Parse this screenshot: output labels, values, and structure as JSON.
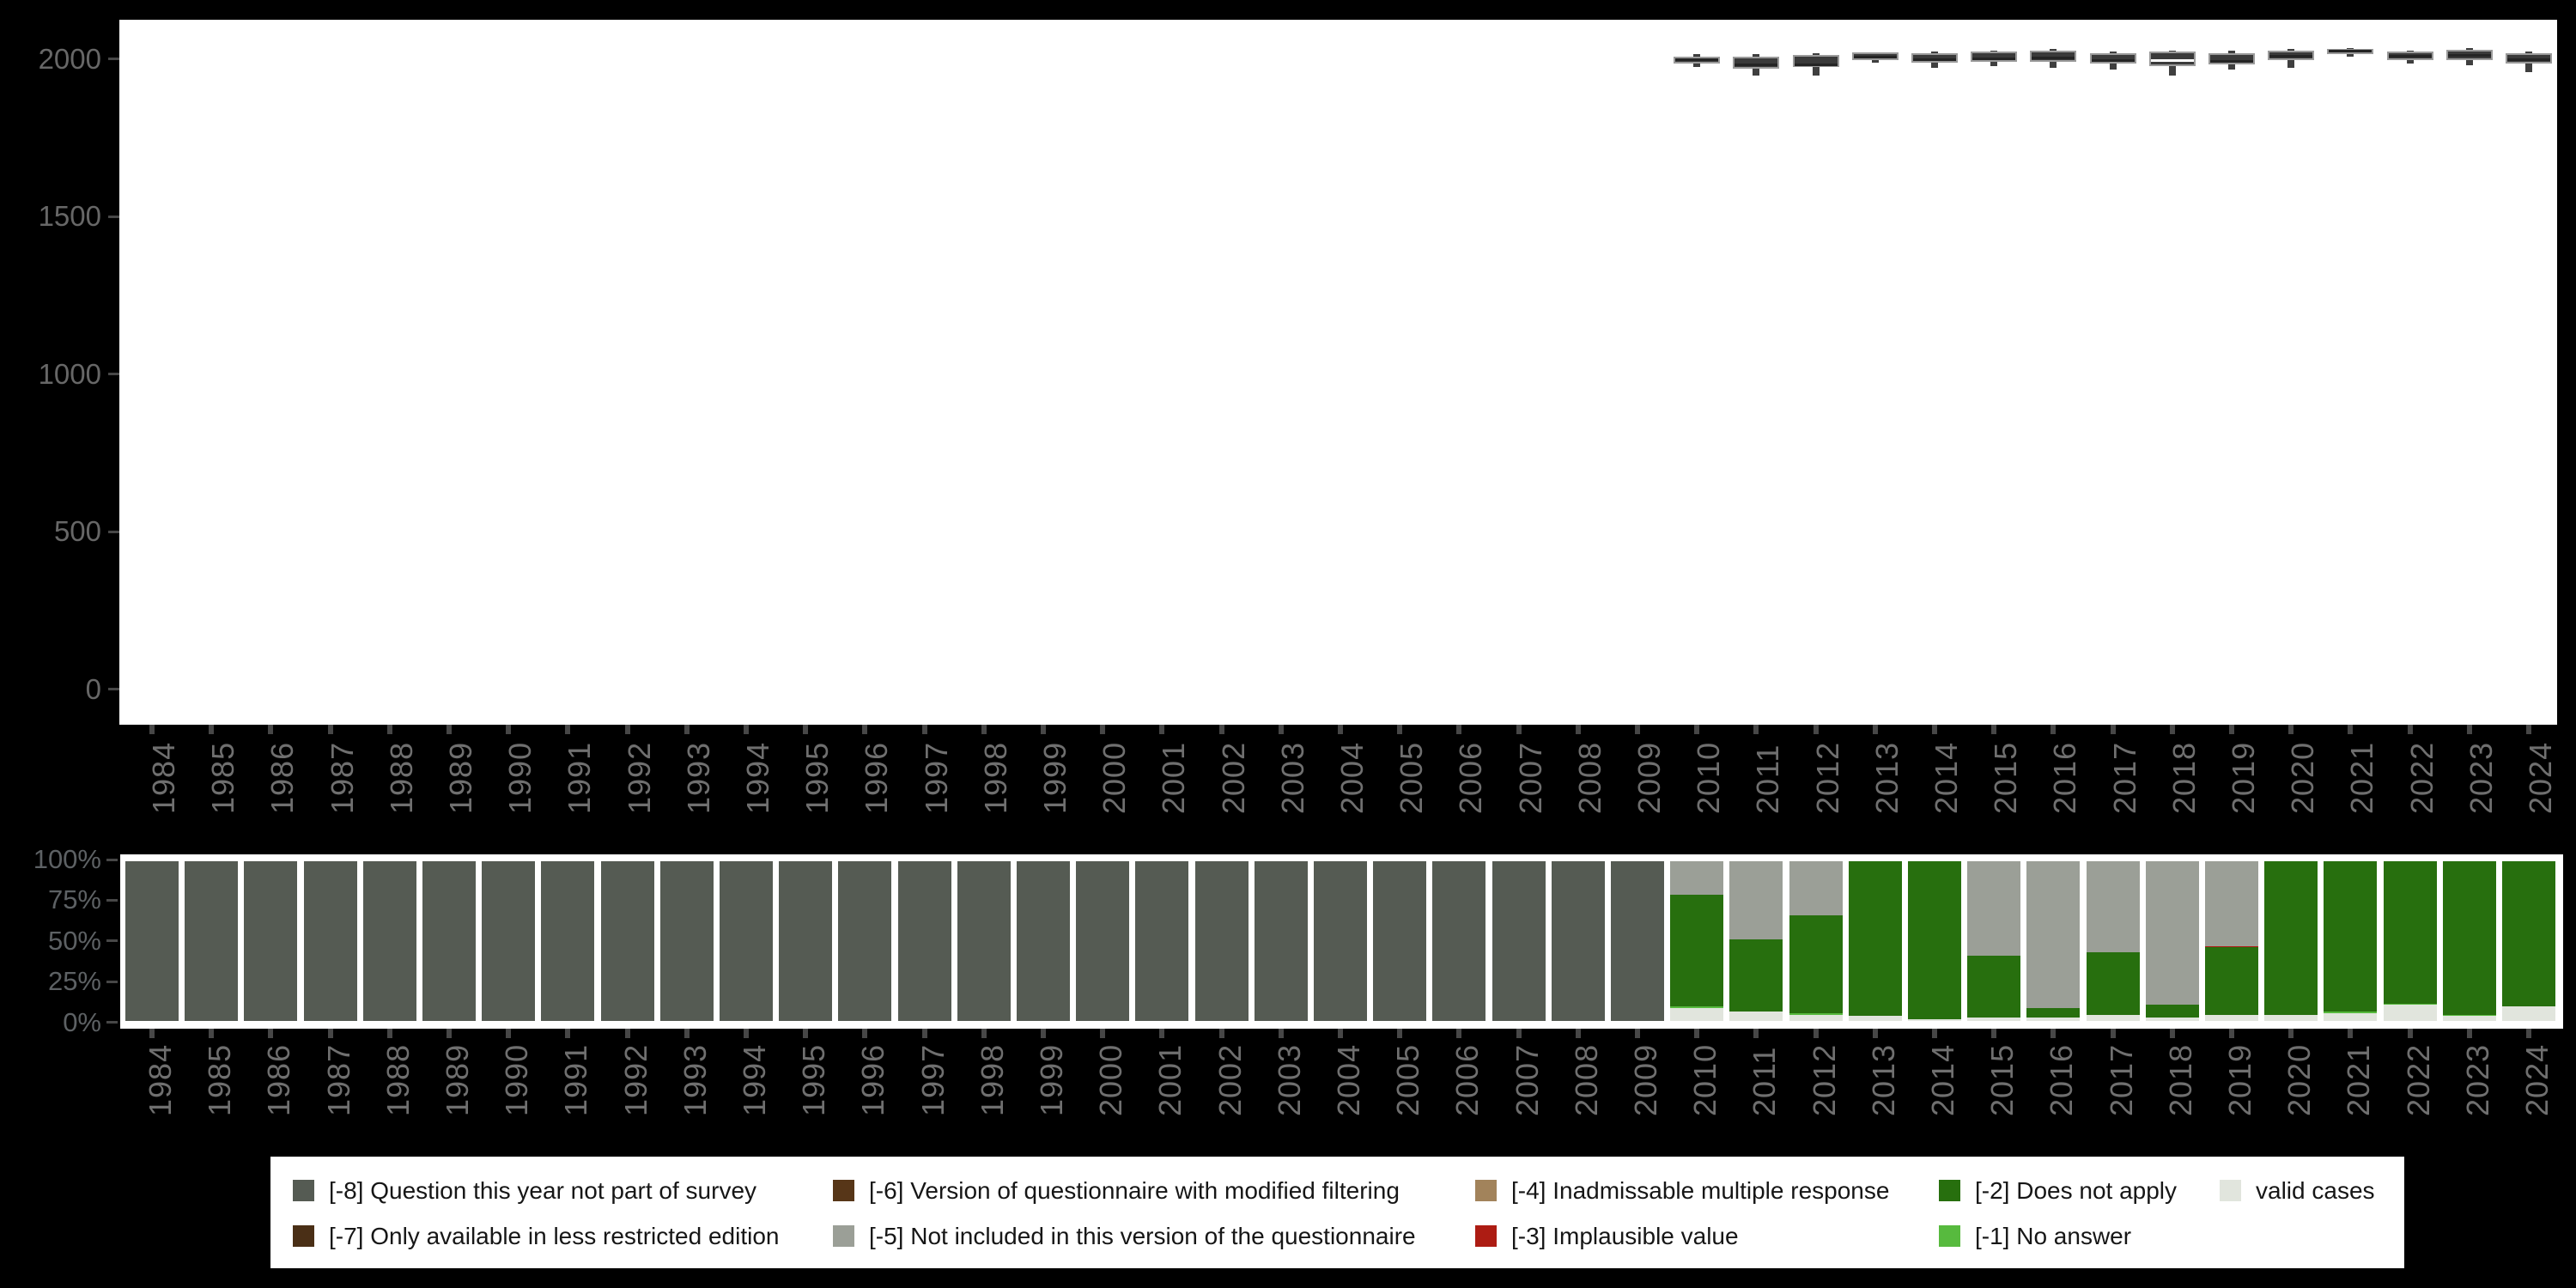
{
  "colors": {
    "background": "#000000",
    "panel": "#ffffff",
    "box_fill": "#3a3a3a",
    "box_border": "#9b9b9b",
    "median_default": "#242424",
    "median_highlight": "#ffffff",
    "axis_tick": "#474747",
    "axis_text": "#6f6f6f",
    "legend_text": "#161616",
    "categories": {
      "-8": "#555b53",
      "-7": "#4a2f16",
      "-6": "#573618",
      "-5": "#9b9f97",
      "-4": "#a2835b",
      "-3": "#ad1c13",
      "-2": "#276f0e",
      "-1": "#57ba3e",
      "valid": "#e1e5dd"
    }
  },
  "legend": {
    "items": [
      {
        "code": "-8",
        "label": "[-8] Question this year not part of survey",
        "col": 0,
        "row": 0
      },
      {
        "code": "-7",
        "label": "[-7] Only available in less restricted edition",
        "col": 0,
        "row": 1
      },
      {
        "code": "-6",
        "label": "[-6] Version of questionnaire with modified filtering",
        "col": 1,
        "row": 0
      },
      {
        "code": "-5",
        "label": "[-5] Not included in this version of the questionnaire",
        "col": 1,
        "row": 1
      },
      {
        "code": "-4",
        "label": "[-4] Inadmissable multiple response",
        "col": 2,
        "row": 0
      },
      {
        "code": "-3",
        "label": "[-3] Implausible value",
        "col": 2,
        "row": 1
      },
      {
        "code": "-2",
        "label": "[-2] Does not apply",
        "col": 3,
        "row": 0
      },
      {
        "code": "-1",
        "label": "[-1] No answer",
        "col": 3,
        "row": 1
      },
      {
        "code": "valid",
        "label": "valid cases",
        "col": 4,
        "row": 0
      }
    ]
  },
  "chart_data": [
    {
      "type": "boxplot",
      "title": "",
      "xlabel": "",
      "ylabel": "",
      "ylim": [
        0,
        2000
      ],
      "grid": false,
      "y_ticks": [
        2000,
        1500,
        1000,
        500,
        0
      ],
      "years": [
        1984,
        1985,
        1986,
        1987,
        1988,
        1989,
        1990,
        1991,
        1992,
        1993,
        1994,
        1995,
        1996,
        1997,
        1998,
        1999,
        2000,
        2001,
        2002,
        2003,
        2004,
        2005,
        2006,
        2007,
        2008,
        2009,
        2010,
        2011,
        2012,
        2013,
        2014,
        2015,
        2016,
        2017,
        2018,
        2019,
        2020,
        2021,
        2022,
        2023,
        2024
      ],
      "boxes": [
        {
          "year": 2010,
          "lo": 1975,
          "q1": 1984,
          "med": 1996,
          "q3": 2008,
          "hi": 2016,
          "median_white": false
        },
        {
          "year": 2011,
          "lo": 1948,
          "q1": 1970,
          "med": 1981,
          "q3": 2007,
          "hi": 2014,
          "median_white": false
        },
        {
          "year": 2012,
          "lo": 1948,
          "q1": 1973,
          "med": 1981,
          "q3": 2011,
          "hi": 2017,
          "median_white": false
        },
        {
          "year": 2013,
          "lo": 1988,
          "q1": 1997,
          "med": 2006,
          "q3": 2020,
          "hi": 2022,
          "median_white": false
        },
        {
          "year": 2014,
          "lo": 1970,
          "q1": 1988,
          "med": 1997,
          "q3": 2017,
          "hi": 2022,
          "median_white": false
        },
        {
          "year": 2015,
          "lo": 1977,
          "q1": 1990,
          "med": 2000,
          "q3": 2023,
          "hi": 2027,
          "median_white": false
        },
        {
          "year": 2016,
          "lo": 1970,
          "q1": 1990,
          "med": 2003,
          "q3": 2026,
          "hi": 2030,
          "median_white": false
        },
        {
          "year": 2017,
          "lo": 1966,
          "q1": 1984,
          "med": 1995,
          "q3": 2017,
          "hi": 2022,
          "median_white": false
        },
        {
          "year": 2018,
          "lo": 1948,
          "q1": 1977,
          "med": 1995,
          "q3": 2023,
          "hi": 2027,
          "median_white": true
        },
        {
          "year": 2019,
          "lo": 1966,
          "q1": 1981,
          "med": 1992,
          "q3": 2017,
          "hi": 2026,
          "median_white": false
        },
        {
          "year": 2020,
          "lo": 1972,
          "q1": 1995,
          "med": 2008,
          "q3": 2026,
          "hi": 2030,
          "median_white": false
        },
        {
          "year": 2021,
          "lo": 2006,
          "q1": 2015,
          "med": 2024,
          "q3": 2032,
          "hi": 2035,
          "median_white": false
        },
        {
          "year": 2022,
          "lo": 1984,
          "q1": 1997,
          "med": 2008,
          "q3": 2023,
          "hi": 2027,
          "median_white": false
        },
        {
          "year": 2023,
          "lo": 1979,
          "q1": 1997,
          "med": 2011,
          "q3": 2029,
          "hi": 2033,
          "median_white": false
        },
        {
          "year": 2024,
          "lo": 1957,
          "q1": 1986,
          "med": 1997,
          "q3": 2017,
          "hi": 2022,
          "median_white": false
        }
      ]
    },
    {
      "type": "bar",
      "stacked": true,
      "percent": true,
      "title": "",
      "xlabel": "",
      "ylabel": "",
      "grid": false,
      "y_ticks": [
        "100%",
        "75%",
        "50%",
        "25%",
        "0%"
      ],
      "years": [
        1984,
        1985,
        1986,
        1987,
        1988,
        1989,
        1990,
        1991,
        1992,
        1993,
        1994,
        1995,
        1996,
        1997,
        1998,
        1999,
        2000,
        2001,
        2002,
        2003,
        2004,
        2005,
        2006,
        2007,
        2008,
        2009,
        2010,
        2011,
        2012,
        2013,
        2014,
        2015,
        2016,
        2017,
        2018,
        2019,
        2020,
        2021,
        2022,
        2023,
        2024
      ],
      "bars": [
        {
          "year": 1984,
          "segments": [
            [
              "-8",
              100
            ]
          ]
        },
        {
          "year": 1985,
          "segments": [
            [
              "-8",
              100
            ]
          ]
        },
        {
          "year": 1986,
          "segments": [
            [
              "-8",
              100
            ]
          ]
        },
        {
          "year": 1987,
          "segments": [
            [
              "-8",
              100
            ]
          ]
        },
        {
          "year": 1988,
          "segments": [
            [
              "-8",
              100
            ]
          ]
        },
        {
          "year": 1989,
          "segments": [
            [
              "-8",
              100
            ]
          ]
        },
        {
          "year": 1990,
          "segments": [
            [
              "-8",
              100
            ]
          ]
        },
        {
          "year": 1991,
          "segments": [
            [
              "-8",
              100
            ]
          ]
        },
        {
          "year": 1992,
          "segments": [
            [
              "-8",
              100
            ]
          ]
        },
        {
          "year": 1993,
          "segments": [
            [
              "-8",
              100
            ]
          ]
        },
        {
          "year": 1994,
          "segments": [
            [
              "-8",
              100
            ]
          ]
        },
        {
          "year": 1995,
          "segments": [
            [
              "-8",
              100
            ]
          ]
        },
        {
          "year": 1996,
          "segments": [
            [
              "-8",
              100
            ]
          ]
        },
        {
          "year": 1997,
          "segments": [
            [
              "-8",
              100
            ]
          ]
        },
        {
          "year": 1998,
          "segments": [
            [
              "-8",
              100
            ]
          ]
        },
        {
          "year": 1999,
          "segments": [
            [
              "-8",
              100
            ]
          ]
        },
        {
          "year": 2000,
          "segments": [
            [
              "-8",
              100
            ]
          ]
        },
        {
          "year": 2001,
          "segments": [
            [
              "-8",
              100
            ]
          ]
        },
        {
          "year": 2002,
          "segments": [
            [
              "-8",
              100
            ]
          ]
        },
        {
          "year": 2003,
          "segments": [
            [
              "-8",
              100
            ]
          ]
        },
        {
          "year": 2004,
          "segments": [
            [
              "-8",
              100
            ]
          ]
        },
        {
          "year": 2005,
          "segments": [
            [
              "-8",
              100
            ]
          ]
        },
        {
          "year": 2006,
          "segments": [
            [
              "-8",
              100
            ]
          ]
        },
        {
          "year": 2007,
          "segments": [
            [
              "-8",
              100
            ]
          ]
        },
        {
          "year": 2008,
          "segments": [
            [
              "-8",
              100
            ]
          ]
        },
        {
          "year": 2009,
          "segments": [
            [
              "-8",
              100
            ]
          ]
        },
        {
          "year": 2010,
          "segments": [
            [
              "-5",
              21
            ],
            [
              "-2",
              70
            ],
            [
              "-1",
              1
            ],
            [
              "valid",
              8
            ]
          ]
        },
        {
          "year": 2011,
          "segments": [
            [
              "-5",
              49
            ],
            [
              "-2",
              45
            ],
            [
              "valid",
              6
            ]
          ]
        },
        {
          "year": 2012,
          "segments": [
            [
              "-5",
              34
            ],
            [
              "-2",
              61
            ],
            [
              "-1",
              1
            ],
            [
              "valid",
              4
            ]
          ]
        },
        {
          "year": 2013,
          "segments": [
            [
              "-2",
              97
            ],
            [
              "valid",
              3
            ]
          ]
        },
        {
          "year": 2014,
          "segments": [
            [
              "-2",
              99
            ],
            [
              "valid",
              1
            ]
          ]
        },
        {
          "year": 2015,
          "segments": [
            [
              "-5",
              59
            ],
            [
              "-2",
              39
            ],
            [
              "valid",
              2
            ]
          ]
        },
        {
          "year": 2016,
          "segments": [
            [
              "-5",
              92
            ],
            [
              "-2",
              6
            ],
            [
              "valid",
              2
            ]
          ]
        },
        {
          "year": 2017,
          "segments": [
            [
              "-5",
              57
            ],
            [
              "-2",
              39
            ],
            [
              "valid",
              4
            ]
          ]
        },
        {
          "year": 2018,
          "segments": [
            [
              "-5",
              90
            ],
            [
              "-2",
              8
            ],
            [
              "valid",
              2
            ]
          ]
        },
        {
          "year": 2019,
          "segments": [
            [
              "-5",
              53
            ],
            [
              "-3",
              1
            ],
            [
              "-2",
              42
            ],
            [
              "valid",
              4
            ]
          ]
        },
        {
          "year": 2020,
          "segments": [
            [
              "-2",
              96
            ],
            [
              "valid",
              4
            ]
          ]
        },
        {
          "year": 2021,
          "segments": [
            [
              "-2",
              94
            ],
            [
              "-1",
              1
            ],
            [
              "valid",
              5
            ]
          ]
        },
        {
          "year": 2022,
          "segments": [
            [
              "-2",
              89
            ],
            [
              "-1",
              1
            ],
            [
              "valid",
              10
            ]
          ]
        },
        {
          "year": 2023,
          "segments": [
            [
              "-2",
              96
            ],
            [
              "-1",
              1
            ],
            [
              "valid",
              3
            ]
          ]
        },
        {
          "year": 2024,
          "segments": [
            [
              "-2",
              91
            ],
            [
              "valid",
              9
            ]
          ]
        }
      ]
    }
  ]
}
